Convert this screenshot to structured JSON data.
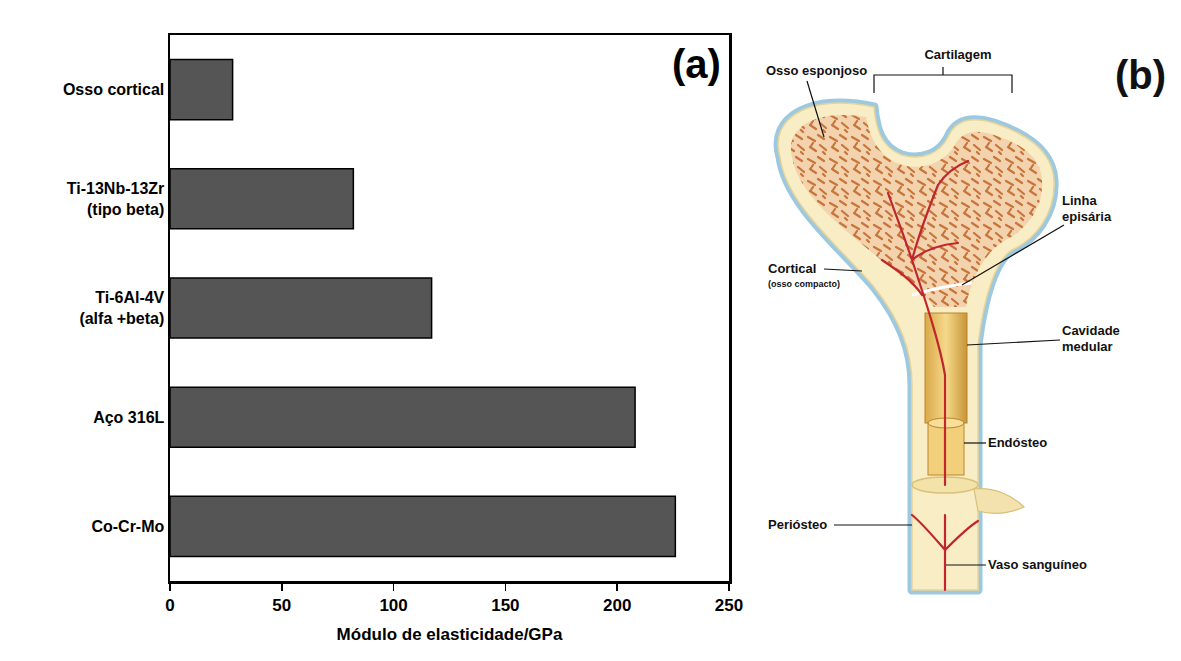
{
  "chart_data": {
    "type": "bar",
    "orientation": "horizontal",
    "categories": [
      "Osso cortical",
      "Ti-13Nb-13Zr\n(tipo beta)",
      "Ti-6Al-4V\n(alfa +beta)",
      "Aço 316L",
      "Co-Cr-Mo"
    ],
    "values": [
      28,
      82,
      117,
      208,
      226
    ],
    "color": "#555555",
    "xlabel": "Módulo de elasticidade/GPa",
    "xlim": [
      0,
      250
    ],
    "xticks": [
      0,
      50,
      100,
      150,
      200,
      250
    ],
    "grid": false,
    "annotations": [
      "(a)"
    ]
  },
  "diagram": {
    "panel": "(b)",
    "labels": {
      "osso_esponjoso": "Osso esponjoso",
      "cartilagem": "Cartilagem",
      "linha": "Linha episária",
      "cortical": "Cortical",
      "cortical_sub": "(osso compacto)",
      "cavidade": "Cavidade medular",
      "endosteo": "Endósteo",
      "periosteo": "Periósteo",
      "vaso": "Vaso sanguíneo"
    }
  }
}
